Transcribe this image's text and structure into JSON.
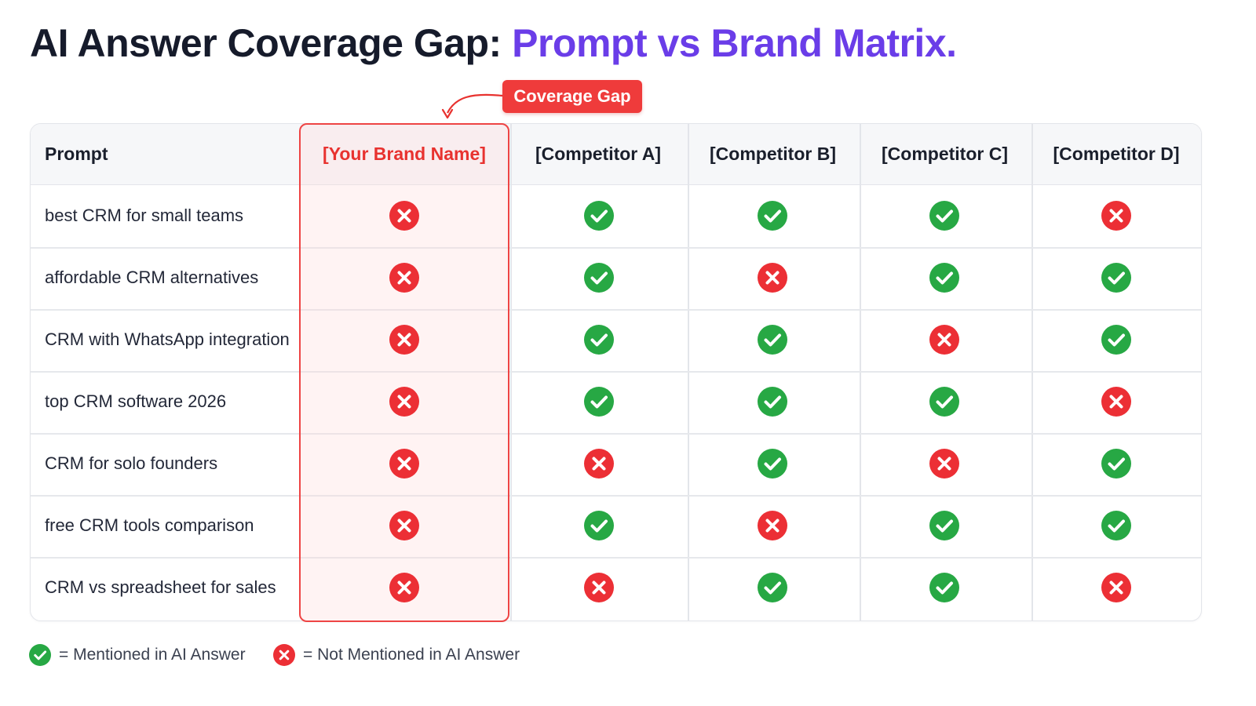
{
  "title": {
    "part1": "AI Answer Coverage Gap: ",
    "part2": "Prompt vs Brand Matrix."
  },
  "callout": {
    "label": "Coverage Gap"
  },
  "colors": {
    "title_dark": "#161b2b",
    "title_accent": "#6a3de8",
    "mentioned": "#27a844",
    "not_mentioned": "#ec2f35",
    "highlight": "#ee4444"
  },
  "chart_data": {
    "type": "table",
    "row_header_label": "Prompt",
    "columns": [
      "[Your Brand Name]",
      "[Competitor A]",
      "[Competitor B]",
      "[Competitor C]",
      "[Competitor D]"
    ],
    "highlighted_column": "[Your Brand Name]",
    "rows": [
      {
        "prompt": "best CRM for small teams",
        "values": [
          "no",
          "yes",
          "yes",
          "yes",
          "no"
        ]
      },
      {
        "prompt": "affordable CRM alternatives",
        "values": [
          "no",
          "yes",
          "no",
          "yes",
          "yes"
        ]
      },
      {
        "prompt": "CRM with WhatsApp integration",
        "values": [
          "no",
          "yes",
          "yes",
          "no",
          "yes"
        ]
      },
      {
        "prompt": "top CRM software 2026",
        "values": [
          "no",
          "yes",
          "yes",
          "yes",
          "no"
        ]
      },
      {
        "prompt": "CRM for solo founders",
        "values": [
          "no",
          "no",
          "yes",
          "no",
          "yes"
        ]
      },
      {
        "prompt": "free CRM tools comparison",
        "values": [
          "no",
          "yes",
          "no",
          "yes",
          "yes"
        ]
      },
      {
        "prompt": "CRM vs spreadsheet for sales",
        "values": [
          "no",
          "no",
          "yes",
          "yes",
          "no"
        ]
      }
    ]
  },
  "legend": {
    "mentioned": "= Mentioned in AI Answer",
    "not_mentioned": "= Not Mentioned in AI Answer"
  }
}
